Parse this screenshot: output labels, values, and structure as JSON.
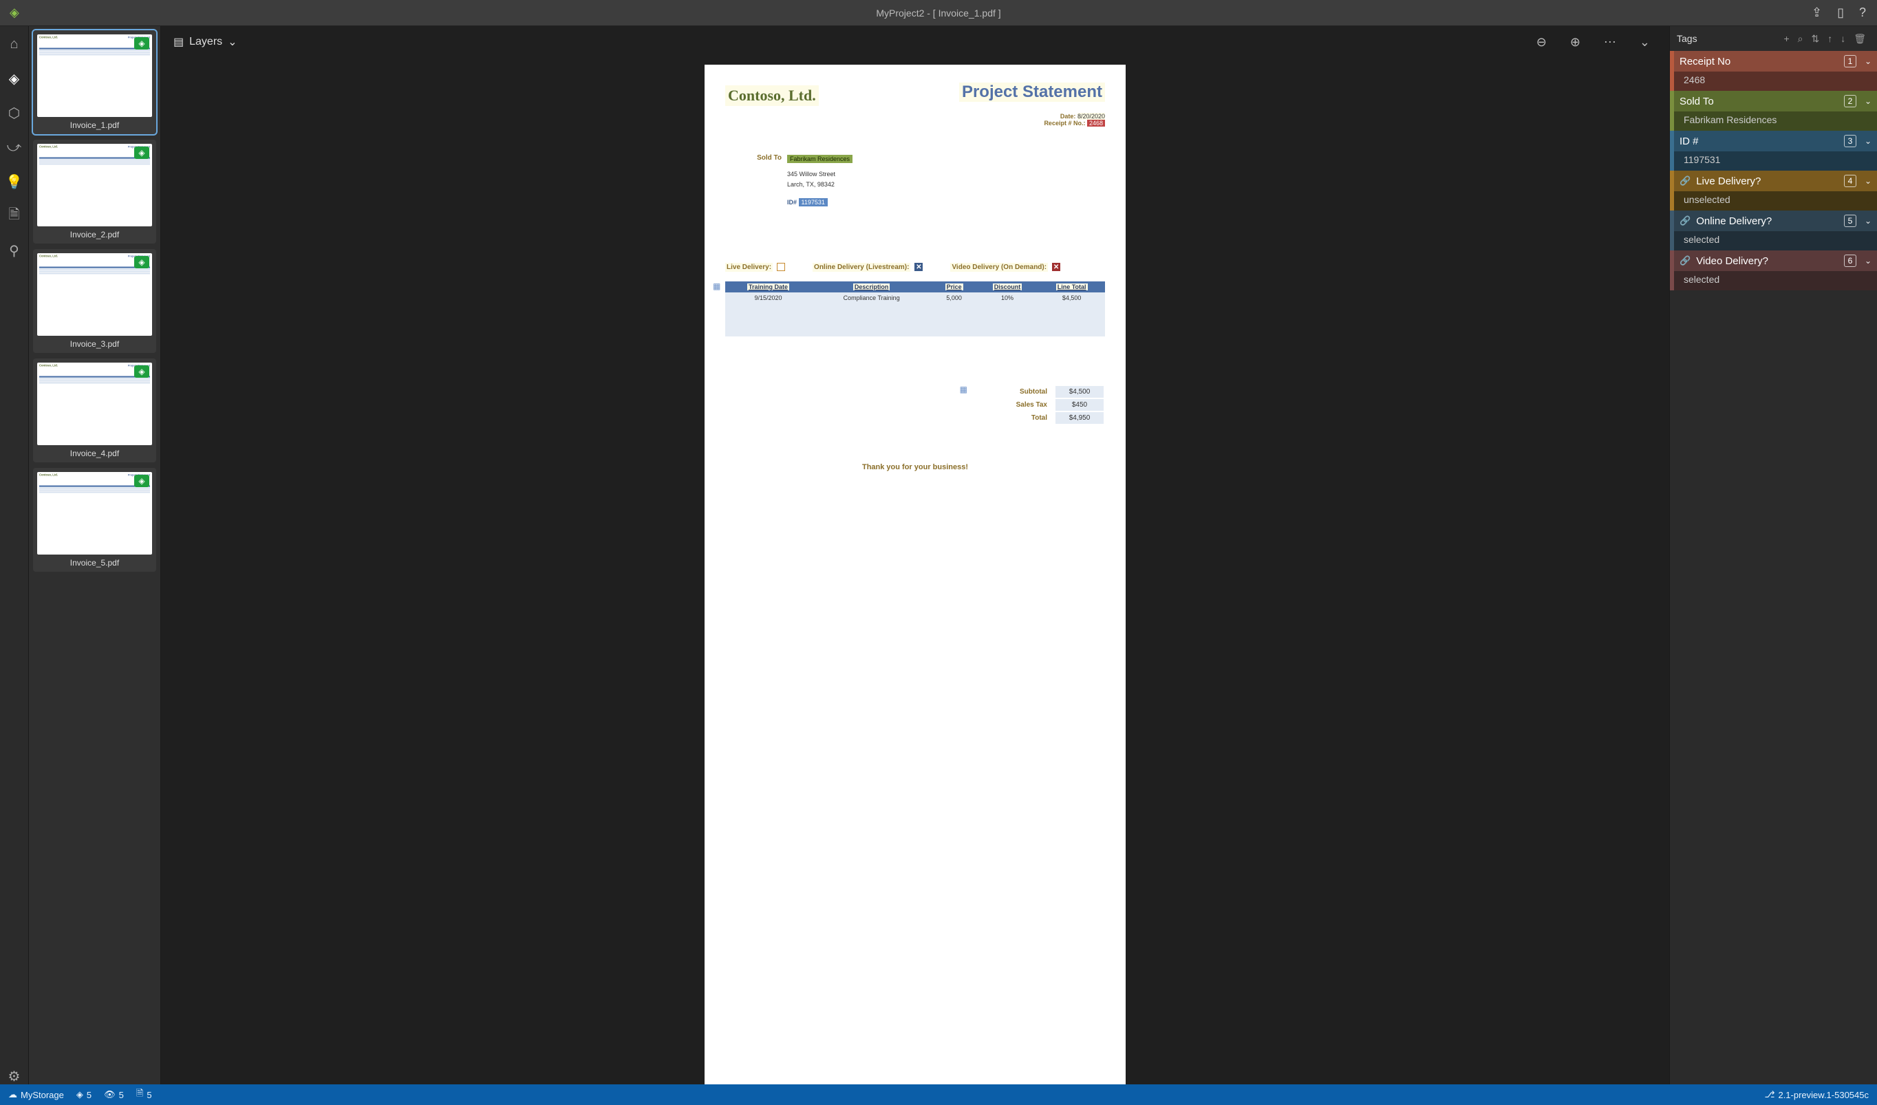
{
  "title": "MyProject2 - [ Invoice_1.pdf ]",
  "toolbar": {
    "layers": "Layers"
  },
  "thumbnails": [
    {
      "name": "Invoice_1.pdf",
      "selected": true
    },
    {
      "name": "Invoice_2.pdf",
      "selected": false
    },
    {
      "name": "Invoice_3.pdf",
      "selected": false
    },
    {
      "name": "Invoice_4.pdf",
      "selected": false
    },
    {
      "name": "Invoice_5.pdf",
      "selected": false
    }
  ],
  "document": {
    "company": "Contoso, Ltd.",
    "heading": "Project Statement",
    "date_label": "Date:",
    "date_value": "8/20/2020",
    "receiptno_label": "Receipt # No.:",
    "receiptno_value": "2468",
    "soldto_label": "Sold To",
    "soldto_name": "Fabrikam Residences",
    "soldto_addr1": "345 Willow Street",
    "soldto_addr2": "Larch, TX, 98342",
    "id_label": "ID#",
    "id_value": "1197531",
    "delivery": {
      "live_label": "Live Delivery:",
      "online_label": "Online Delivery (Livestream):",
      "video_label": "Video Delivery (On Demand):"
    },
    "table": {
      "headers": [
        "Training Date",
        "Description",
        "Price",
        "Discount",
        "Line Total"
      ],
      "rows": [
        [
          "9/15/2020",
          "Compliance Training",
          "5,000",
          "10%",
          "$4,500"
        ]
      ]
    },
    "totals": {
      "subtotal_label": "Subtotal",
      "subtotal_value": "$4,500",
      "tax_label": "Sales Tax",
      "tax_value": "$450",
      "total_label": "Total",
      "total_value": "$4,950"
    },
    "thanks": "Thank you for your business!"
  },
  "tags_panel": {
    "title": "Tags",
    "items": [
      {
        "name": "Receipt No",
        "value": "2468",
        "key": "1",
        "linked": false,
        "head_color": "#8a4a3a",
        "value_color": "#5a3028",
        "border_color": "#b85a3e"
      },
      {
        "name": "Sold To",
        "value": "Fabrikam Residences",
        "key": "2",
        "linked": false,
        "head_color": "#5a6b2e",
        "value_color": "#3e4a20",
        "border_color": "#7a8f3e"
      },
      {
        "name": "ID #",
        "value": "1197531",
        "key": "3",
        "linked": false,
        "head_color": "#2a5068",
        "value_color": "#1e3848",
        "border_color": "#3a6f90"
      },
      {
        "name": "Live Delivery?",
        "value": "unselected",
        "key": "4",
        "linked": true,
        "head_color": "#7a5a1e",
        "value_color": "#413514",
        "border_color": "#a87a28"
      },
      {
        "name": "Online Delivery?",
        "value": "selected",
        "key": "5",
        "linked": true,
        "head_color": "#2e4250",
        "value_color": "#202e38",
        "border_color": "#3e5a6e"
      },
      {
        "name": "Video Delivery?",
        "value": "selected",
        "key": "6",
        "linked": true,
        "head_color": "#5a3a3a",
        "value_color": "#3a2828",
        "border_color": "#7a4a4a"
      }
    ]
  },
  "statusbar": {
    "storage": "MyStorage",
    "tagged": "5",
    "viewed": "5",
    "docs": "5",
    "version": "2.1-preview.1-530545c"
  }
}
